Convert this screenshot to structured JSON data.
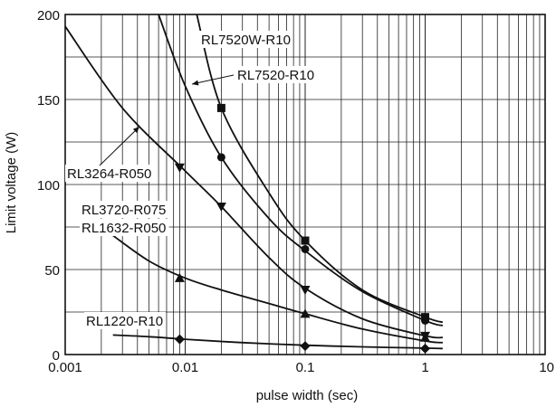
{
  "chart_data": {
    "type": "line",
    "title": "",
    "xlabel": "pulse width (sec)",
    "ylabel": "Limit voltage (W)",
    "x_scale": "log",
    "xlim": [
      0.001,
      10
    ],
    "ylim": [
      0,
      200
    ],
    "grid": true,
    "x_tick_labels": [
      "0.001",
      "0.01",
      "0.1",
      "1",
      "10"
    ],
    "y_tick_labels": [
      "0",
      "50",
      "100",
      "150",
      "200"
    ],
    "series": [
      {
        "name": "RL7520W-R10",
        "marker": "square",
        "curve_x": [
          0.0125,
          0.02,
          0.05,
          0.1,
          0.3,
          1.0,
          1.4
        ],
        "curve_y": [
          200,
          145,
          95,
          67,
          38,
          22,
          19
        ],
        "points_x": [
          0.02,
          0.1,
          1.0
        ],
        "points_y": [
          145,
          67,
          22
        ]
      },
      {
        "name": "RL7520-R10",
        "marker": "circle",
        "curve_x": [
          0.006,
          0.01,
          0.02,
          0.05,
          0.1,
          0.3,
          1.0,
          1.4
        ],
        "curve_y": [
          200,
          158,
          116,
          80,
          61,
          37,
          20,
          17
        ],
        "points_x": [
          0.02,
          0.1,
          1.0
        ],
        "points_y": [
          116,
          62,
          20
        ]
      },
      {
        "name": "RL3720-R075",
        "marker": "triangle-down",
        "curve_x": [
          0.001,
          0.003,
          0.01,
          0.02,
          0.05,
          0.1,
          0.3,
          1.0,
          1.4
        ],
        "curve_y": [
          193,
          145,
          108,
          87,
          57,
          39,
          21,
          11,
          10
        ],
        "points_x": [
          0.009,
          0.02,
          0.1,
          1.0
        ],
        "points_y": [
          110,
          87,
          38,
          11
        ]
      },
      {
        "name": "RL3264-R050",
        "marker": "none",
        "curve_x": [],
        "curve_y": [],
        "points_x": [],
        "points_y": []
      },
      {
        "name": "RL1632-R050",
        "marker": "triangle-up",
        "curve_x": [
          0.0025,
          0.005,
          0.01,
          0.02,
          0.05,
          0.1,
          0.3,
          1.0,
          1.4
        ],
        "curve_y": [
          70,
          55,
          45,
          38,
          30,
          24,
          15,
          8,
          7
        ],
        "points_x": [
          0.009,
          0.1,
          1.0
        ],
        "points_y": [
          45,
          24,
          10
        ]
      },
      {
        "name": "RL1220-R10",
        "marker": "diamond",
        "curve_x": [
          0.0025,
          0.005,
          0.01,
          0.03,
          0.1,
          0.3,
          1.0,
          1.4
        ],
        "curve_y": [
          11.5,
          10.5,
          9,
          7,
          5.5,
          4.5,
          3.8,
          3.5
        ],
        "points_x": [
          0.009,
          0.1,
          1.0
        ],
        "points_y": [
          9,
          5,
          3.5
        ]
      }
    ]
  }
}
